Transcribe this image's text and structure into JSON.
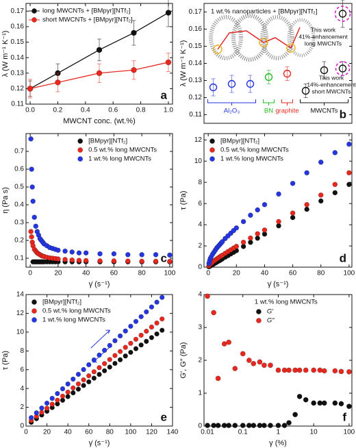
{
  "chart_data": [
    {
      "type": "line",
      "panel_label": "a",
      "xlabel": "MWCNT conc. (wt.%)",
      "ylabel": "λ (W m⁻¹ K⁻¹)",
      "x": [
        0,
        0.2,
        0.5,
        0.75,
        1
      ],
      "series": [
        {
          "name": "long MWCNTs + [BMpyr][NTf₂]",
          "color": "#111111",
          "values": [
            0.12,
            0.13,
            0.145,
            0.156,
            0.169
          ],
          "errors": [
            0.005,
            0.006,
            0.007,
            0.008,
            0.009
          ]
        },
        {
          "name": "short MWCNTs + [BMpyr][NTf₂]",
          "color": "#e8281e",
          "values": [
            0.12,
            0.124,
            0.13,
            0.132,
            0.137
          ],
          "errors": [
            0.006,
            0.006,
            0.006,
            0.006,
            0.006
          ]
        }
      ],
      "xlim": [
        -0.03,
        1.03
      ],
      "xticks": [
        {
          "value": 0,
          "label": "0.0"
        },
        0.2,
        0.4,
        0.6,
        0.8,
        {
          "value": 1,
          "label": "1.0"
        }
      ],
      "ylim": [
        0.11,
        0.175
      ],
      "yticks": [
        0.11,
        0.12,
        0.13,
        0.14,
        0.15,
        0.16,
        0.17
      ],
      "legend": "upper left"
    },
    {
      "type": "scatter",
      "marker": "open",
      "panel_label": "b",
      "title": "1 wt.% nanoparticles + [BMpyr][NTf₂]",
      "ylabel": "λ (W m⁻¹ K⁻¹)",
      "categories": [
        null,
        null,
        null,
        null,
        null,
        null,
        null,
        null
      ],
      "series": [
        {
          "values": [
            0.126,
            0.128,
            0.128,
            0.132,
            0.134,
            0.124,
            0.136,
            null
          ],
          "colors": [
            "#2233dd",
            "#2233dd",
            "#2233dd",
            "#22bb22",
            "#e8281e",
            "#111111",
            "#111111",
            null
          ],
          "errors": [
            0.005,
            0.005,
            0.005,
            0.004,
            0.004,
            0.004,
            0.005,
            null
          ]
        },
        {
          "color": "#111111",
          "values": [
            null,
            null,
            null,
            null,
            null,
            null,
            null,
            0.137
          ],
          "errors": [
            null,
            null,
            null,
            null,
            null,
            null,
            null,
            0.004
          ]
        },
        {
          "color": "#111111",
          "values": [
            null,
            null,
            null,
            null,
            null,
            null,
            null,
            0.169
          ],
          "errors": [
            null,
            null,
            null,
            null,
            null,
            null,
            null,
            0.008
          ]
        }
      ],
      "groups": [
        {
          "label": "Al₂O₃",
          "color": "#2233dd",
          "count": 3
        },
        {
          "label": "BN",
          "color": "#22bb22",
          "count": 1
        },
        {
          "label": "graphite",
          "color": "#e8281e",
          "count": 1
        },
        {
          "label": "MWCNTs",
          "color": "#111111",
          "count": 3
        }
      ],
      "annotations": [
        "This work",
        "41%-enhancement",
        "long MWCNTs",
        "This work",
        "14%-enhancement",
        "short MWCNTs"
      ],
      "ylim": [
        0.105,
        0.175
      ],
      "yticks": [
        0.11,
        0.12,
        0.13,
        0.14,
        0.15,
        0.16,
        0.17
      ]
    },
    {
      "type": "scatter",
      "panel_label": "c",
      "xlabel": "γ̇ (s⁻¹)",
      "ylabel": "η (Pa s)",
      "x": [
        0.5,
        1,
        1.5,
        2,
        3,
        4,
        5,
        6,
        7,
        8,
        9,
        10,
        12,
        14,
        16,
        18,
        20,
        25,
        30,
        35,
        40,
        50,
        60,
        70,
        80,
        90,
        100
      ],
      "series": [
        {
          "name": "[BMpyr][NTf₂]",
          "color": "#111111",
          "values": [
            null,
            null,
            null,
            0.08,
            0.08,
            0.08,
            0.08,
            0.08,
            0.08,
            0.08,
            0.08,
            0.08,
            0.08,
            0.08,
            0.08,
            0.08,
            0.08,
            0.08,
            0.08,
            0.08,
            0.08,
            0.08,
            0.08,
            0.08,
            0.08,
            0.08,
            0.08
          ]
        },
        {
          "name": "0.5 wt.% long MWCNTs",
          "color": "#e8281e",
          "values": [
            0.25,
            0.22,
            0.19,
            0.17,
            0.15,
            0.14,
            0.13,
            0.125,
            0.12,
            0.115,
            0.112,
            0.11,
            0.105,
            0.102,
            0.1,
            0.098,
            0.096,
            0.093,
            0.09,
            0.088,
            0.087,
            0.085,
            0.085,
            0.084,
            0.083,
            0.083,
            0.082
          ]
        },
        {
          "name": "1 wt.% long MWCNTs",
          "color": "#2436e0",
          "values": [
            0.77,
            0.6,
            0.5,
            0.42,
            0.33,
            0.28,
            0.25,
            0.23,
            0.21,
            0.2,
            0.19,
            0.18,
            0.17,
            0.16,
            0.155,
            0.15,
            0.145,
            0.14,
            0.135,
            0.13,
            0.13,
            0.125,
            0.125,
            0.12,
            0.12,
            0.12,
            0.118
          ]
        }
      ],
      "xlim": [
        -3,
        102
      ],
      "xticks": [
        0,
        20,
        40,
        60,
        80,
        100
      ],
      "ylim": [
        0.05,
        0.8
      ],
      "yticks": [
        0.1,
        0.2,
        0.3,
        0.4,
        0.5,
        0.6,
        0.7
      ],
      "legend": "upper center"
    },
    {
      "type": "scatter",
      "panel_label": "d",
      "xlabel": "γ̇ (s⁻¹)",
      "ylabel": "τ (Pa)",
      "x": [
        0.5,
        1,
        1.5,
        2,
        3,
        4,
        5,
        6,
        7,
        8,
        9,
        10,
        12,
        14,
        16,
        18,
        20,
        25,
        30,
        35,
        40,
        50,
        60,
        70,
        80,
        90,
        100
      ],
      "series": [
        {
          "name": "[BMpyr][NTf₂]",
          "color": "#111111",
          "values": [
            0.04,
            0.08,
            0.12,
            0.16,
            0.23,
            0.31,
            0.39,
            0.47,
            0.55,
            0.62,
            0.7,
            0.78,
            0.94,
            1.09,
            1.25,
            1.4,
            1.56,
            1.95,
            2.34,
            2.73,
            3.12,
            3.9,
            4.68,
            5.46,
            6.24,
            7.02,
            7.8
          ]
        },
        {
          "name": "0.5 wt.% long MWCNTs",
          "color": "#e8281e",
          "values": [
            0.12,
            0.22,
            0.3,
            0.36,
            0.47,
            0.58,
            0.67,
            0.77,
            0.86,
            0.95,
            1.04,
            1.12,
            1.3,
            1.47,
            1.63,
            1.8,
            1.96,
            2.35,
            2.75,
            3.15,
            3.5,
            4.3,
            5.1,
            5.9,
            6.8,
            7.8,
            8.9
          ]
        },
        {
          "name": "1 wt.% long MWCNTs",
          "color": "#2436e0",
          "values": [
            0.35,
            0.6,
            0.8,
            0.95,
            1.2,
            1.4,
            1.6,
            1.8,
            1.95,
            2.1,
            2.25,
            2.4,
            2.7,
            2.95,
            3.2,
            3.45,
            3.7,
            4.3,
            4.9,
            5.4,
            5.9,
            6.9,
            7.9,
            8.9,
            9.9,
            10.8,
            11.6
          ]
        }
      ],
      "xlim": [
        -3,
        102
      ],
      "xticks": [
        0,
        20,
        40,
        60,
        80,
        100
      ],
      "ylim": [
        0,
        12.6
      ],
      "yticks": [
        0,
        2,
        4,
        6,
        8,
        10,
        12
      ],
      "legend": "upper left"
    },
    {
      "type": "scatter",
      "panel_label": "e",
      "xlabel": "γ̇ (s⁻¹)",
      "ylabel": "τ (Pa)",
      "x": [
        5,
        10,
        15,
        20,
        25,
        30,
        35,
        40,
        45,
        50,
        55,
        60,
        65,
        70,
        75,
        80,
        85,
        90,
        95,
        100,
        105,
        110,
        115,
        120,
        125,
        130
      ],
      "series": [
        {
          "name": "[BMpyr][NTf₂]",
          "color": "#111111",
          "values": [
            0.4,
            0.79,
            1.18,
            1.58,
            1.97,
            2.36,
            2.75,
            3.14,
            3.54,
            3.93,
            4.32,
            4.71,
            5.1,
            5.5,
            5.89,
            6.28,
            6.67,
            7.06,
            7.46,
            7.85,
            8.24,
            8.63,
            9.02,
            9.42,
            9.81,
            10.2
          ]
        },
        {
          "name": "0.5 wt.% long MWCNTs",
          "color": "#e8281e",
          "values": [
            0.6,
            1.03,
            1.46,
            1.9,
            2.33,
            2.76,
            3.19,
            3.62,
            4.06,
            4.49,
            4.92,
            5.35,
            5.78,
            6.22,
            6.65,
            7.08,
            7.51,
            7.94,
            8.38,
            8.81,
            9.24,
            9.67,
            10.1,
            10.54,
            10.97,
            11.4
          ]
        },
        {
          "name": "1 wt.% long MWCNTs",
          "color": "#2436e0",
          "values": [
            0.9,
            1.41,
            1.92,
            2.44,
            2.95,
            3.46,
            3.97,
            4.48,
            5.0,
            5.51,
            6.02,
            6.53,
            7.04,
            7.56,
            8.07,
            8.58,
            9.09,
            9.6,
            10.12,
            10.63,
            11.14,
            11.65,
            12.16,
            12.68,
            13.19,
            13.7
          ]
        }
      ],
      "xlim": [
        0,
        140
      ],
      "xticks": [
        0,
        20,
        40,
        60,
        80,
        100,
        120,
        140
      ],
      "ylim": [
        0,
        14
      ],
      "yticks": [
        0,
        2,
        4,
        6,
        8,
        10,
        12,
        14
      ],
      "legend": "upper left"
    },
    {
      "type": "scatter",
      "panel_label": "f",
      "xlabel": "γ (%)",
      "ylabel": "G′, G″ (Pa)",
      "xlog": true,
      "legend_title": "1 wt.% long MWCNTs",
      "x": [
        0.01,
        0.015,
        0.02,
        0.03,
        0.04,
        0.06,
        0.1,
        0.15,
        0.2,
        0.3,
        0.4,
        0.6,
        1,
        1.5,
        2,
        3,
        4,
        6,
        10,
        15,
        20,
        40,
        60,
        100
      ],
      "series": [
        {
          "name": "G′",
          "color": "#111111",
          "values": [
            0.02,
            0.02,
            0.02,
            0.02,
            0.02,
            0.02,
            0.02,
            0.02,
            0.02,
            0.02,
            0.02,
            0.02,
            0.02,
            0.02,
            0.1,
            0.35,
            0.9,
            0.8,
            0.7,
            0.7,
            0.7,
            0.7,
            0.68,
            0.6
          ]
        },
        {
          "name": "G″",
          "color": "#e8281e",
          "values": [
            3.95,
            3.45,
            1.45,
            2.5,
            2.55,
            1.75,
            2.2,
            2.0,
            1.9,
            1.95,
            1.85,
            1.85,
            1.7,
            1.7,
            1.7,
            1.7,
            1.7,
            1.7,
            1.7,
            1.7,
            1.68,
            1.68,
            1.66,
            1.65
          ]
        }
      ],
      "xlim": [
        0.008,
        120
      ],
      "xticks": [
        0.01,
        0.1,
        1,
        10,
        100
      ],
      "ylim": [
        0,
        4
      ],
      "yticks": [
        0,
        1,
        2,
        3,
        4
      ],
      "legend": "upper center"
    }
  ]
}
